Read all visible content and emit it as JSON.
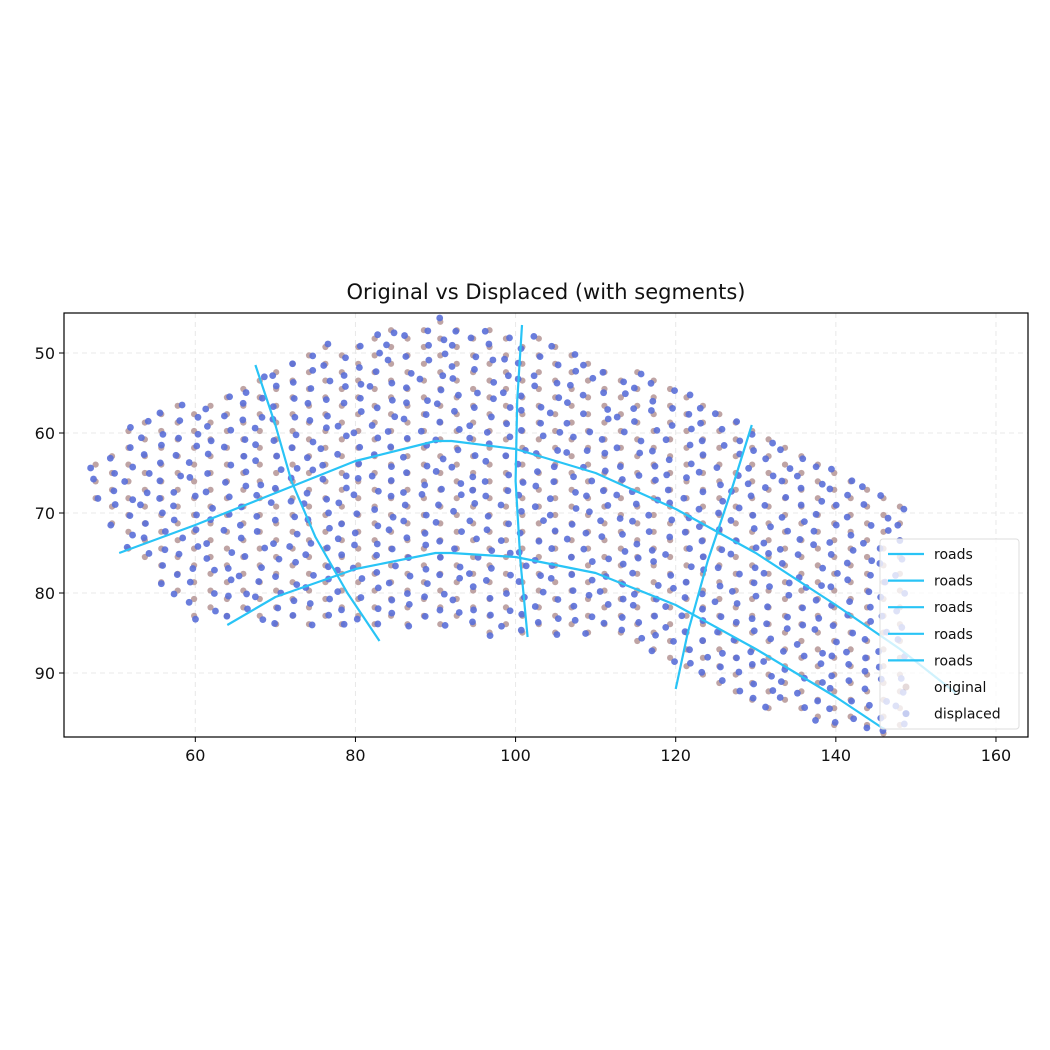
{
  "chart_data": {
    "type": "scatter",
    "title": "Original vs Displaced (with segments)",
    "xlabel": "",
    "ylabel": "",
    "xlim": [
      43.6,
      164.0
    ],
    "ylim": [
      98,
      45
    ],
    "y_inverted": true,
    "grid": true,
    "xticks": [
      60,
      80,
      100,
      120,
      140,
      160
    ],
    "yticks": [
      50,
      60,
      70,
      80,
      90
    ],
    "legend_position": "lower-right",
    "legend": [
      "roads",
      "roads",
      "roads",
      "roads",
      "roads",
      "original",
      "displaced"
    ],
    "colors": {
      "roads": "#29c4f6",
      "original": "#b49494",
      "displaced": "#5a6fd8",
      "grid": "#e8e8e8"
    },
    "point_cloud": {
      "description_note": "",
      "region_top": [
        [
          45.5,
          65.5
        ],
        [
          52,
          59
        ],
        [
          60,
          55.5
        ],
        [
          68,
          52
        ],
        [
          76,
          49
        ],
        [
          84,
          47
        ],
        [
          90,
          46
        ],
        [
          97,
          46.2
        ],
        [
          104,
          48
        ],
        [
          112,
          51
        ],
        [
          120,
          54
        ],
        [
          128,
          57
        ],
        [
          136,
          61
        ],
        [
          144,
          66
        ],
        [
          150,
          70
        ]
      ],
      "region_bottom": [
        [
          45.5,
          65.5
        ],
        [
          50,
          74
        ],
        [
          56,
          79
        ],
        [
          60,
          83
        ],
        [
          68,
          84
        ],
        [
          76,
          84.5
        ],
        [
          84,
          84.5
        ],
        [
          94,
          85
        ],
        [
          102,
          85.5
        ],
        [
          110,
          85.5
        ],
        [
          118,
          88
        ],
        [
          124,
          92
        ],
        [
          132,
          95
        ],
        [
          140,
          97
        ],
        [
          144,
          97.5
        ],
        [
          150,
          98
        ],
        [
          158,
          92
        ],
        [
          162,
          88
        ],
        [
          158,
          82
        ],
        [
          152,
          76
        ],
        [
          150,
          70
        ]
      ]
    },
    "series": [
      {
        "name": "roads",
        "kind": "line",
        "x": [
          50.5,
          60,
          70,
          80,
          90,
          92,
          100,
          110,
          120,
          130,
          140,
          148,
          155
        ],
        "y": [
          75,
          71.5,
          67.5,
          63.5,
          61,
          61,
          62,
          65,
          69.5,
          75,
          81.5,
          87,
          92.5
        ]
      },
      {
        "name": "roads",
        "kind": "line",
        "x": [
          64,
          70,
          80,
          90,
          92,
          100,
          110,
          120,
          130,
          140,
          146
        ],
        "y": [
          84,
          80.5,
          77,
          75,
          75,
          75.5,
          77.5,
          81.5,
          87,
          93,
          97
        ]
      },
      {
        "name": "roads",
        "kind": "line",
        "x": [
          67.5,
          70,
          72,
          75,
          79,
          83
        ],
        "y": [
          51.5,
          59,
          66,
          73,
          80,
          86
        ]
      },
      {
        "name": "roads",
        "kind": "line",
        "x": [
          100.8,
          100.2,
          100,
          100.6,
          101.5
        ],
        "y": [
          46.5,
          56,
          66,
          76,
          85.5
        ]
      },
      {
        "name": "roads",
        "kind": "line",
        "x": [
          129.5,
          127,
          124,
          121.5,
          120
        ],
        "y": [
          59,
          67,
          76,
          85,
          92
        ]
      },
      {
        "name": "original",
        "kind": "scatter"
      },
      {
        "name": "displaced",
        "kind": "scatter"
      }
    ]
  }
}
